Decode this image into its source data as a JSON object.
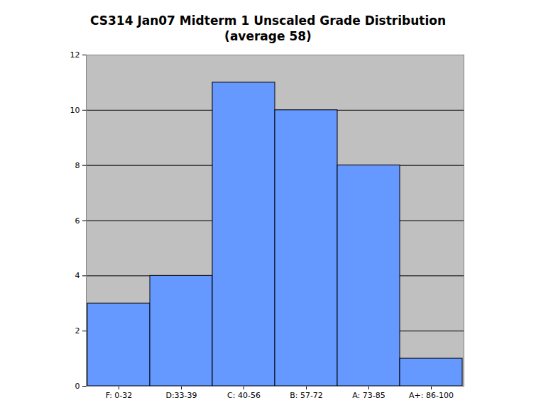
{
  "chart_data": {
    "type": "bar",
    "title": "CS314 Jan07 Midterm 1 Unscaled Grade Distribution",
    "subtitle": "(average 58)",
    "categories": [
      "F: 0-32",
      "D:33-39",
      "C: 40-56",
      "B: 57-72",
      "A: 73-85",
      "A+: 86-100"
    ],
    "values": [
      3,
      4,
      11,
      10,
      8,
      1
    ],
    "color": "#6699ff",
    "ylim": [
      0,
      12
    ],
    "yticks": [
      0,
      2,
      4,
      6,
      8,
      10,
      12
    ],
    "grid": true
  }
}
